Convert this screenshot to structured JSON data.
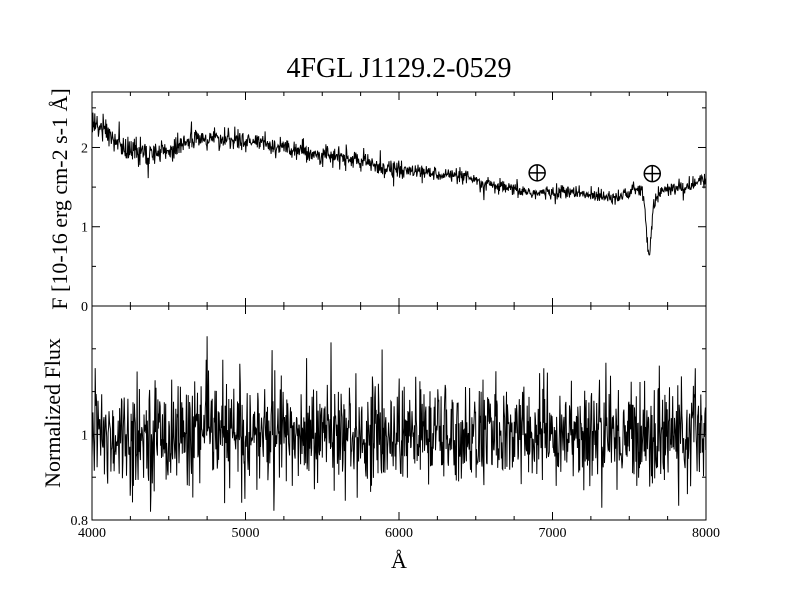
{
  "chart_data": {
    "type": "line",
    "title": "4FGL J1129.2-0529",
    "xlabel": "Å",
    "xlim": [
      4000,
      8000
    ],
    "x_ticks": [
      4000,
      5000,
      6000,
      7000,
      8000
    ],
    "panels": [
      {
        "name": "flux",
        "ylabel": "F [10-16 erg cm-2 s-1 Å]",
        "ylim": [
          0,
          2.7
        ],
        "y_ticks": [
          0,
          1,
          2
        ],
        "series": [
          {
            "values_x": [
              4000,
              4100,
              4200,
              4300,
              4400,
              4500,
              4600,
              4700,
              4800,
              4900,
              5000,
              5100,
              5200,
              5300,
              5400,
              5500,
              5600,
              5700,
              5800,
              5900,
              6000,
              6100,
              6200,
              6300,
              6400,
              6500,
              6600,
              6700,
              6800,
              6900,
              7000,
              7100,
              7200,
              7300,
              7400,
              7500,
              7550,
              7580,
              7600,
              7610,
              7620,
              7630,
              7640,
              7650,
              7660,
              7680,
              7700,
              7800,
              7900,
              8000
            ],
            "values_y": [
              2.3,
              2.2,
              2.0,
              1.95,
              1.9,
              1.95,
              2.08,
              2.1,
              2.12,
              2.1,
              2.08,
              2.05,
              2.02,
              2.0,
              1.95,
              1.9,
              1.88,
              1.85,
              1.8,
              1.75,
              1.72,
              1.7,
              1.68,
              1.66,
              1.63,
              1.58,
              1.52,
              1.48,
              1.45,
              1.42,
              1.43,
              1.45,
              1.4,
              1.4,
              1.38,
              1.42,
              1.48,
              1.45,
              1.3,
              1.0,
              0.7,
              0.6,
              0.8,
              1.1,
              1.3,
              1.38,
              1.45,
              1.48,
              1.52,
              1.6
            ]
          }
        ],
        "annotations": [
          {
            "symbol": "⊕",
            "x": 6900,
            "y": 1.68
          },
          {
            "symbol": "⊕",
            "x": 7650,
            "y": 1.67
          }
        ]
      },
      {
        "name": "normalized",
        "ylabel": "Normalized Flux",
        "ylim": [
          0.8,
          1.3
        ],
        "y_ticks": [
          0.8,
          1
        ],
        "series": [
          {
            "values_x": [
              4000,
              8000
            ],
            "values_y": [
              1.0,
              1.0
            ]
          }
        ]
      }
    ]
  }
}
